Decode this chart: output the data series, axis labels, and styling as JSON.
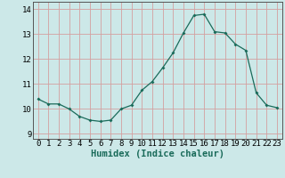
{
  "x": [
    0,
    1,
    2,
    3,
    4,
    5,
    6,
    7,
    8,
    9,
    10,
    11,
    12,
    13,
    14,
    15,
    16,
    17,
    18,
    19,
    20,
    21,
    22,
    23
  ],
  "y": [
    10.4,
    10.2,
    10.2,
    10.0,
    9.7,
    9.55,
    9.5,
    9.55,
    10.0,
    10.15,
    10.75,
    11.1,
    11.65,
    12.25,
    13.05,
    13.75,
    13.8,
    13.1,
    13.05,
    12.6,
    12.35,
    10.65,
    10.15,
    10.05
  ],
  "line_color": "#1a6b5a",
  "marker": "D",
  "marker_size": 2.0,
  "bg_color": "#cce8e8",
  "grid_color_v": "#d4a0a0",
  "grid_color_h": "#d4a0a0",
  "xlabel": "Humidex (Indice chaleur)",
  "xlabel_fontsize": 7.5,
  "tick_fontsize": 6.5,
  "ylim": [
    8.8,
    14.3
  ],
  "yticks": [
    9,
    10,
    11,
    12,
    13,
    14
  ],
  "xlim": [
    -0.5,
    23.5
  ],
  "xticks": [
    0,
    1,
    2,
    3,
    4,
    5,
    6,
    7,
    8,
    9,
    10,
    11,
    12,
    13,
    14,
    15,
    16,
    17,
    18,
    19,
    20,
    21,
    22,
    23
  ]
}
